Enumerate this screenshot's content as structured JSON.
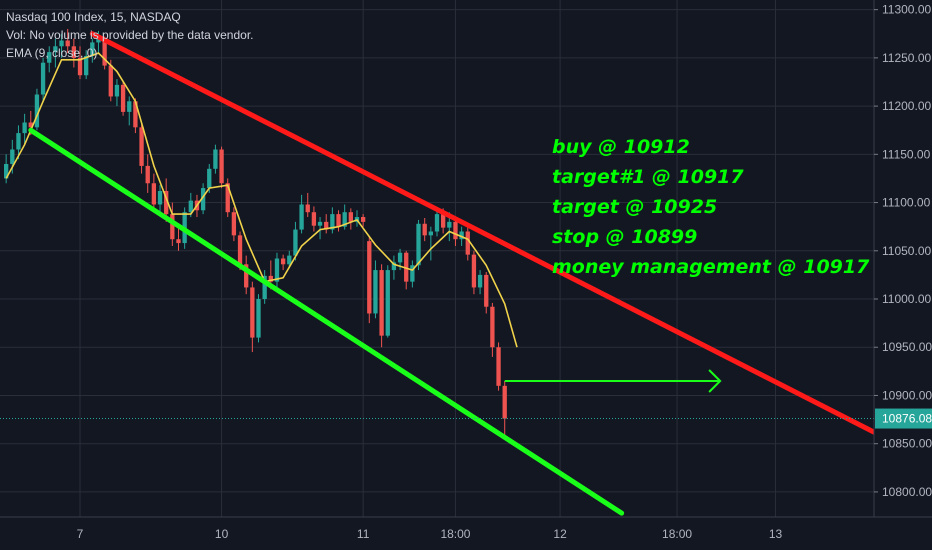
{
  "legend": {
    "symbol": "Nasdaq 100 Index, 15, NASDAQ",
    "volume": "Vol: No volume is provided by the data vendor.",
    "ema": "EMA (9, close, 0)"
  },
  "notes": [
    "buy @ 10912",
    "target#1 @ 10917",
    "target @ 10925",
    "stop @ 10899",
    "money management @ 10917"
  ],
  "colors": {
    "background": "#131722",
    "grid": "#2a2e39",
    "up_candle": "#26a69a",
    "down_candle": "#ef5350",
    "ema": "#f0d34a",
    "resistance": "#ff1a1a",
    "support": "#1aff1a",
    "arrow": "#1aff1a",
    "price_line": "#26a69a"
  },
  "chart_data": {
    "type": "candlestick",
    "symbol": "Nasdaq 100 Index",
    "interval": "15",
    "y_ticks": [
      10800,
      10850,
      10900,
      10950,
      11000,
      11050,
      11100,
      11150,
      11200,
      11250,
      11300
    ],
    "y_tick_labels": [
      "10800.00",
      "10850.00",
      "10900.00",
      "10950.00",
      "11000.00",
      "11050.00",
      "11100.00",
      "11150.00",
      "11200.00",
      "11250.00",
      "11300.00"
    ],
    "ylim": [
      10774,
      11310
    ],
    "x_ticks": [
      {
        "label": "7",
        "bar": 12
      },
      {
        "label": "10",
        "bar": 35
      },
      {
        "label": "11",
        "bar": 58
      },
      {
        "label": "18:00",
        "bar": 73
      },
      {
        "label": "12",
        "bar": 90
      },
      {
        "label": "18:00",
        "bar": 109
      },
      {
        "label": "13",
        "bar": 125
      }
    ],
    "x_range_bars": [
      -1,
      141
    ],
    "last_price": 10876.08,
    "last_price_label": "10876.08",
    "ohlc": [
      [
        11125,
        11150,
        11120,
        11140
      ],
      [
        11140,
        11165,
        11130,
        11155
      ],
      [
        11155,
        11180,
        11145,
        11172
      ],
      [
        11172,
        11192,
        11160,
        11183
      ],
      [
        11183,
        11195,
        11170,
        11178
      ],
      [
        11178,
        11218,
        11175,
        11212
      ],
      [
        11212,
        11250,
        11205,
        11245
      ],
      [
        11245,
        11262,
        11235,
        11256
      ],
      [
        11256,
        11270,
        11240,
        11262
      ],
      [
        11262,
        11275,
        11250,
        11268
      ],
      [
        11268,
        11280,
        11255,
        11262
      ],
      [
        11262,
        11270,
        11240,
        11250
      ],
      [
        11250,
        11262,
        11228,
        11232
      ],
      [
        11232,
        11258,
        11228,
        11252
      ],
      [
        11252,
        11270,
        11245,
        11266
      ],
      [
        11266,
        11278,
        11255,
        11270
      ],
      [
        11268,
        11272,
        11238,
        11242
      ],
      [
        11242,
        11248,
        11205,
        11210
      ],
      [
        11210,
        11228,
        11200,
        11222
      ],
      [
        11222,
        11226,
        11190,
        11194
      ],
      [
        11194,
        11210,
        11180,
        11205
      ],
      [
        11205,
        11208,
        11172,
        11178
      ],
      [
        11178,
        11182,
        11130,
        11138
      ],
      [
        11138,
        11150,
        11110,
        11120
      ],
      [
        11120,
        11130,
        11090,
        11098
      ],
      [
        11098,
        11118,
        11090,
        11112
      ],
      [
        11112,
        11125,
        11080,
        11088
      ],
      [
        11088,
        11100,
        11055,
        11062
      ],
      [
        11062,
        11075,
        11050,
        11058
      ],
      [
        11058,
        11095,
        11052,
        11090
      ],
      [
        11090,
        11110,
        11085,
        11102
      ],
      [
        11102,
        11108,
        11085,
        11092
      ],
      [
        11092,
        11120,
        11088,
        11115
      ],
      [
        11115,
        11140,
        11110,
        11135
      ],
      [
        11135,
        11160,
        11130,
        11155
      ],
      [
        11155,
        11158,
        11115,
        11120
      ],
      [
        11120,
        11125,
        11085,
        11090
      ],
      [
        11090,
        11095,
        11060,
        11066
      ],
      [
        11066,
        11070,
        11030,
        11036
      ],
      [
        11036,
        11045,
        11005,
        11012
      ],
      [
        11012,
        11018,
        10945,
        10960
      ],
      [
        10960,
        11005,
        10955,
        11000
      ],
      [
        11000,
        11030,
        10995,
        11024
      ],
      [
        11024,
        11040,
        11010,
        11018
      ],
      [
        11018,
        11048,
        11012,
        11042
      ],
      [
        11042,
        11046,
        11030,
        11036
      ],
      [
        11036,
        11050,
        11032,
        11045
      ],
      [
        11045,
        11080,
        11040,
        11072
      ],
      [
        11072,
        11108,
        11068,
        11098
      ],
      [
        11098,
        11110,
        11085,
        11090
      ],
      [
        11090,
        11096,
        11070,
        11076
      ],
      [
        11076,
        11085,
        11062,
        11080
      ],
      [
        11080,
        11088,
        11068,
        11072
      ],
      [
        11072,
        11095,
        11068,
        11088
      ],
      [
        11088,
        11092,
        11070,
        11075
      ],
      [
        11075,
        11098,
        11072,
        11090
      ],
      [
        11090,
        11094,
        11072,
        11080
      ],
      [
        11080,
        11092,
        11075,
        11085
      ],
      [
        11085,
        11088,
        11075,
        11080
      ],
      [
        11060,
        11065,
        10975,
        10985
      ],
      [
        10985,
        11040,
        10980,
        11030
      ],
      [
        11030,
        11036,
        10950,
        10962
      ],
      [
        10962,
        11035,
        10960,
        11030
      ],
      [
        11030,
        11045,
        11020,
        11038
      ],
      [
        11038,
        11052,
        11030,
        11048
      ],
      [
        11048,
        11050,
        11010,
        11018
      ],
      [
        11018,
        11040,
        11012,
        11035
      ],
      [
        11035,
        11082,
        11030,
        11078
      ],
      [
        11078,
        11084,
        11060,
        11066
      ],
      [
        11066,
        11075,
        11040,
        11070
      ],
      [
        11070,
        11092,
        11065,
        11088
      ],
      [
        11088,
        11094,
        11068,
        11074
      ],
      [
        11074,
        11090,
        11060,
        11080
      ],
      [
        11080,
        11084,
        11055,
        11062
      ],
      [
        11062,
        11075,
        11055,
        11070
      ],
      [
        11070,
        11078,
        11040,
        11046
      ],
      [
        11046,
        11050,
        11005,
        11012
      ],
      [
        11012,
        11030,
        11005,
        11025
      ],
      [
        11025,
        11028,
        10985,
        10992
      ],
      [
        10992,
        10996,
        10940,
        10950
      ],
      [
        10950,
        10955,
        10905,
        10910
      ],
      [
        10910,
        10915,
        10855,
        10876
      ]
    ],
    "ema": [
      [
        0,
        11125
      ],
      [
        3,
        11160
      ],
      [
        6,
        11205
      ],
      [
        9,
        11248
      ],
      [
        12,
        11248
      ],
      [
        15,
        11255
      ],
      [
        18,
        11236
      ],
      [
        21,
        11205
      ],
      [
        24,
        11138
      ],
      [
        27,
        11088
      ],
      [
        30,
        11088
      ],
      [
        33,
        11115
      ],
      [
        36,
        11118
      ],
      [
        39,
        11062
      ],
      [
        42,
        11018
      ],
      [
        45,
        11022
      ],
      [
        48,
        11055
      ],
      [
        51,
        11072
      ],
      [
        54,
        11075
      ],
      [
        57,
        11082
      ],
      [
        60,
        11056
      ],
      [
        63,
        11036
      ],
      [
        66,
        11030
      ],
      [
        69,
        11052
      ],
      [
        72,
        11070
      ],
      [
        75,
        11062
      ],
      [
        78,
        11035
      ],
      [
        81,
        10995
      ],
      [
        83,
        10950
      ]
    ],
    "resistance_line": {
      "from": [
        14,
        11275
      ],
      "to": [
        149,
        10836
      ]
    },
    "support_line": {
      "from": [
        4,
        11175
      ],
      "to": [
        100,
        10778
      ]
    },
    "arrow": {
      "price": 10915,
      "from_bar": 81,
      "to_bar": 116
    }
  }
}
